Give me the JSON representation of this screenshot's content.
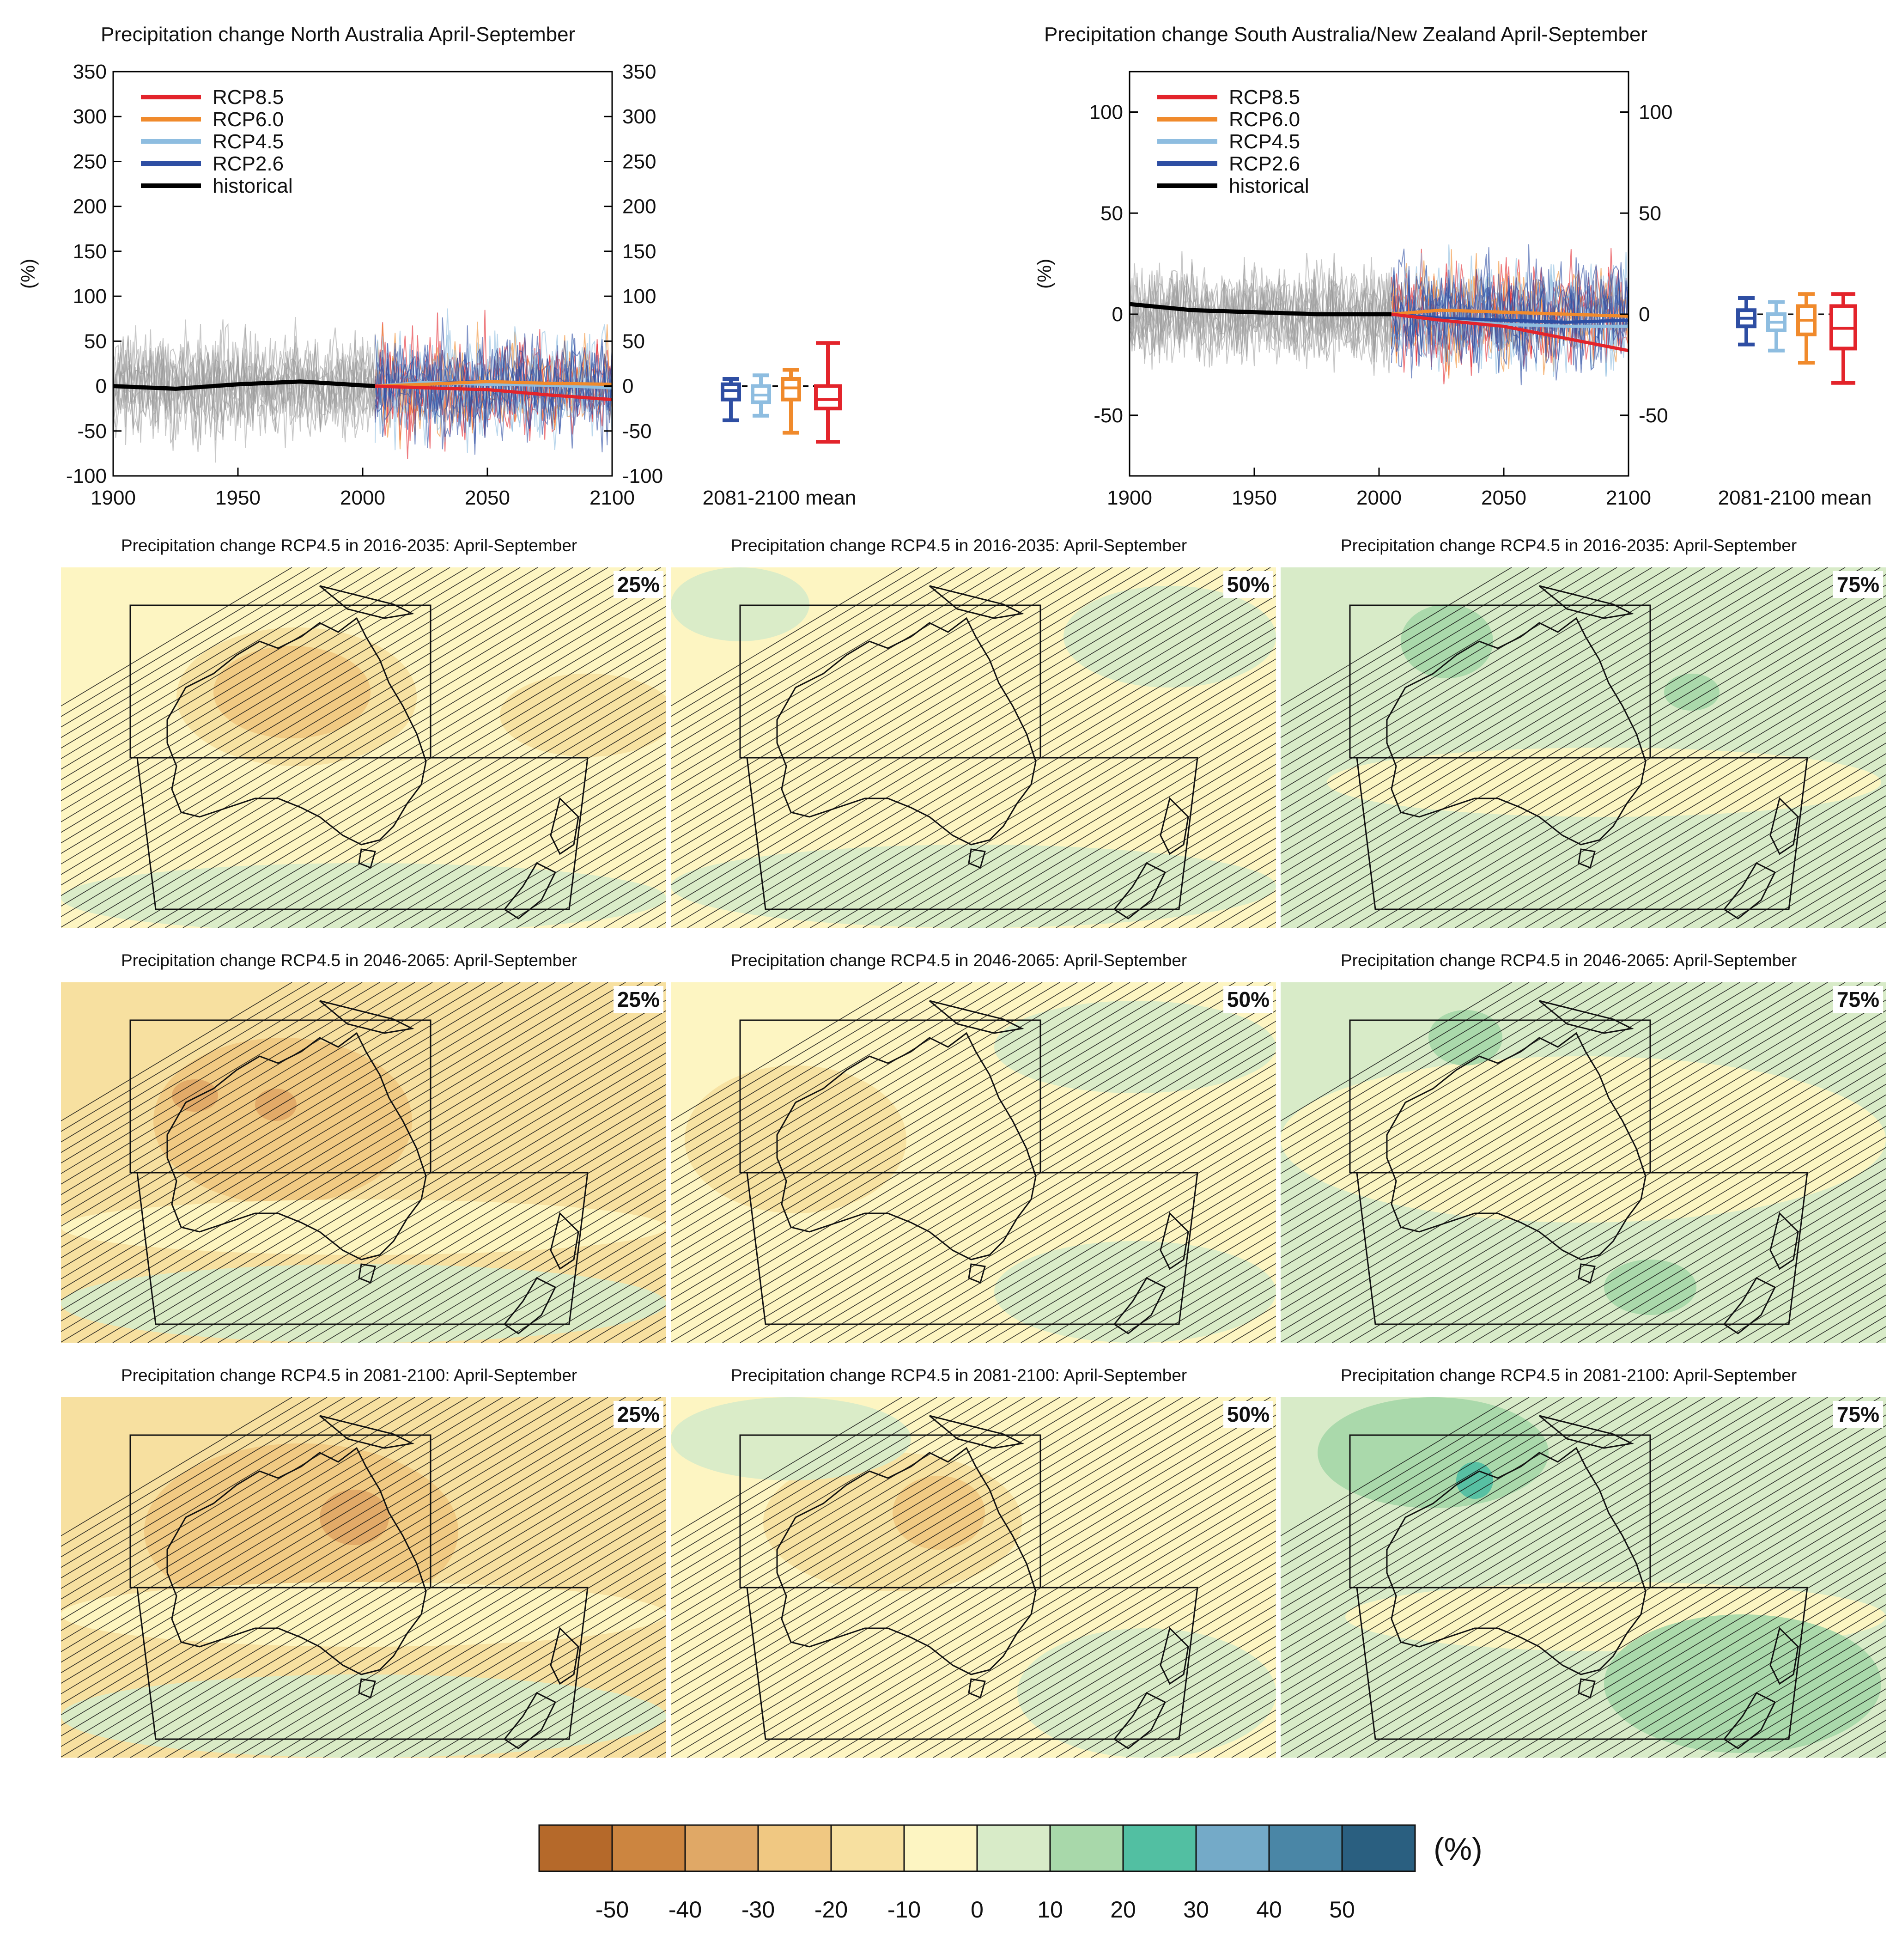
{
  "chart_data": [
    {
      "type": "line",
      "title": "Precipitation change North Australia April-September",
      "ylabel": "(%)",
      "xlim": [
        1900,
        2100
      ],
      "ylim": [
        -100,
        350
      ],
      "xticks": [
        1900,
        1950,
        2000,
        2050,
        2100
      ],
      "yticks": [
        -100,
        -50,
        0,
        50,
        100,
        150,
        200,
        250,
        300,
        350
      ],
      "legend": [
        "RCP8.5",
        "RCP6.0",
        "RCP4.5",
        "RCP2.6",
        "historical"
      ],
      "legend_position": "top-left",
      "series": [
        {
          "name": "historical",
          "x": [
            1900,
            1925,
            1950,
            1975,
            2005
          ],
          "y": [
            0,
            -3,
            2,
            5,
            0
          ]
        },
        {
          "name": "RCP2.6",
          "x": [
            2005,
            2025,
            2050,
            2075,
            2100
          ],
          "y": [
            0,
            3,
            5,
            2,
            0
          ]
        },
        {
          "name": "RCP4.5",
          "x": [
            2005,
            2025,
            2050,
            2075,
            2100
          ],
          "y": [
            0,
            4,
            2,
            1,
            -2
          ]
        },
        {
          "name": "RCP6.0",
          "x": [
            2005,
            2025,
            2050,
            2075,
            2100
          ],
          "y": [
            0,
            2,
            5,
            3,
            2
          ]
        },
        {
          "name": "RCP8.5",
          "x": [
            2005,
            2025,
            2050,
            2075,
            2100
          ],
          "y": [
            0,
            -2,
            -4,
            -10,
            -15
          ]
        }
      ],
      "mean_label": "2081-2100 mean",
      "boxes": [
        {
          "name": "RCP2.6",
          "whisker": [
            -38,
            8
          ],
          "box": [
            -15,
            2
          ],
          "median": -5
        },
        {
          "name": "RCP4.5",
          "whisker": [
            -33,
            12
          ],
          "box": [
            -18,
            0
          ],
          "median": -10
        },
        {
          "name": "RCP6.0",
          "whisker": [
            -52,
            18
          ],
          "box": [
            -15,
            8
          ],
          "median": -2
        },
        {
          "name": "RCP8.5",
          "whisker": [
            -62,
            48
          ],
          "box": [
            -25,
            0
          ],
          "median": -15
        }
      ]
    },
    {
      "type": "line",
      "title": "Precipitation change South Australia/New Zealand April-September",
      "ylabel": "(%)",
      "xlim": [
        1900,
        2100
      ],
      "ylim": [
        -80,
        120
      ],
      "xticks": [
        1900,
        1950,
        2000,
        2050,
        2100
      ],
      "yticks": [
        -50,
        0,
        50,
        100
      ],
      "legend": [
        "RCP8.5",
        "RCP6.0",
        "RCP4.5",
        "RCP2.6",
        "historical"
      ],
      "legend_position": "top-left",
      "series": [
        {
          "name": "historical",
          "x": [
            1900,
            1925,
            1950,
            1975,
            2005
          ],
          "y": [
            5,
            2,
            1,
            0,
            0
          ]
        },
        {
          "name": "RCP2.6",
          "x": [
            2005,
            2025,
            2050,
            2075,
            2100
          ],
          "y": [
            0,
            -2,
            -3,
            -4,
            -3
          ]
        },
        {
          "name": "RCP4.5",
          "x": [
            2005,
            2025,
            2050,
            2075,
            2100
          ],
          "y": [
            0,
            -3,
            -5,
            -6,
            -6
          ]
        },
        {
          "name": "RCP6.0",
          "x": [
            2005,
            2025,
            2050,
            2075,
            2100
          ],
          "y": [
            0,
            2,
            1,
            0,
            -1
          ]
        },
        {
          "name": "RCP8.5",
          "x": [
            2005,
            2025,
            2050,
            2075,
            2100
          ],
          "y": [
            0,
            -3,
            -6,
            -12,
            -18
          ]
        }
      ],
      "mean_label": "2081-2100 mean",
      "boxes": [
        {
          "name": "RCP2.6",
          "whisker": [
            -15,
            8
          ],
          "box": [
            -6,
            2
          ],
          "median": -2
        },
        {
          "name": "RCP4.5",
          "whisker": [
            -18,
            6
          ],
          "box": [
            -8,
            0
          ],
          "median": -4
        },
        {
          "name": "RCP6.0",
          "whisker": [
            -24,
            10
          ],
          "box": [
            -10,
            4
          ],
          "median": -3
        },
        {
          "name": "RCP8.5",
          "whisker": [
            -34,
            10
          ],
          "box": [
            -17,
            4
          ],
          "median": -7
        }
      ]
    },
    {
      "type": "heatmap",
      "maps": [
        {
          "title": "Precipitation change RCP4.5 in 2016-2035: April-September",
          "percentile": "25%"
        },
        {
          "title": "Precipitation change RCP4.5 in 2016-2035: April-September",
          "percentile": "50%"
        },
        {
          "title": "Precipitation change RCP4.5 in 2016-2035: April-September",
          "percentile": "75%"
        },
        {
          "title": "Precipitation change RCP4.5 in 2046-2065: April-September",
          "percentile": "25%"
        },
        {
          "title": "Precipitation change RCP4.5 in 2046-2065: April-September",
          "percentile": "50%"
        },
        {
          "title": "Precipitation change RCP4.5 in 2046-2065: April-September",
          "percentile": "75%"
        },
        {
          "title": "Precipitation change RCP4.5 in 2081-2100: April-September",
          "percentile": "25%"
        },
        {
          "title": "Precipitation change RCP4.5 in 2081-2100: April-September",
          "percentile": "50%"
        },
        {
          "title": "Precipitation change RCP4.5 in 2081-2100: April-September",
          "percentile": "75%"
        }
      ],
      "colorbar": {
        "unit": "(%)",
        "ticks": [
          "-50",
          "-40",
          "-30",
          "-20",
          "-10",
          "0",
          "10",
          "20",
          "30",
          "40",
          "50"
        ],
        "colors": [
          "#b5692a",
          "#cc8540",
          "#e0a866",
          "#f0c882",
          "#f7e0a0",
          "#fdf5c2",
          "#d8ebc8",
          "#a8d8aa",
          "#52bfa2",
          "#74aac8",
          "#4a86a6",
          "#2a5f80"
        ]
      }
    }
  ],
  "colors": {
    "RCP8.5": "#e3242b",
    "RCP6.0": "#f08a2c",
    "RCP4.5": "#8ebde0",
    "RCP2.6": "#2e4ea3",
    "historical": "#000000",
    "ensemble_gray": "#9a9a9a"
  }
}
